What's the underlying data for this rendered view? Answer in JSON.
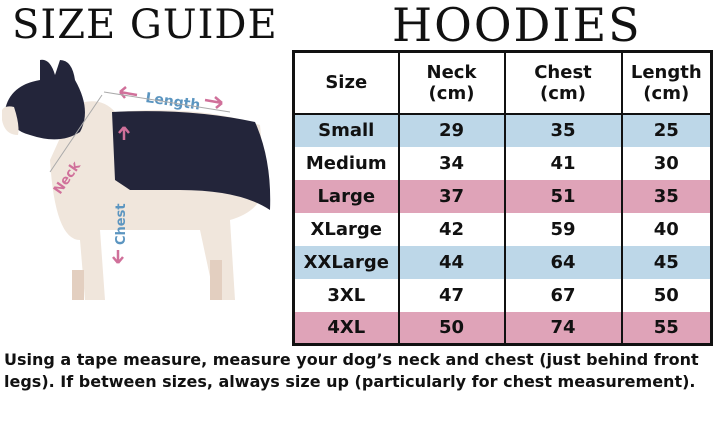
{
  "titles": {
    "left": "SIZE GUIDE",
    "right": "HOODIES"
  },
  "illustration": {
    "labels": {
      "length": "Length",
      "neck": "Neck",
      "chest": "Chest"
    }
  },
  "table": {
    "headers": [
      [
        "Size"
      ],
      [
        "Neck",
        "(cm)"
      ],
      [
        "Chest",
        "(cm)"
      ],
      [
        "Length",
        "(cm)"
      ]
    ],
    "rows": [
      {
        "size": "Small",
        "neck": "29",
        "chest": "35",
        "length": "25",
        "color": "blue"
      },
      {
        "size": "Medium",
        "neck": "34",
        "chest": "41",
        "length": "30",
        "color": "white"
      },
      {
        "size": "Large",
        "neck": "37",
        "chest": "51",
        "length": "35",
        "color": "pink"
      },
      {
        "size": "XLarge",
        "neck": "42",
        "chest": "59",
        "length": "40",
        "color": "white"
      },
      {
        "size": "XXLarge",
        "neck": "44",
        "chest": "64",
        "length": "45",
        "color": "blue"
      },
      {
        "size": "3XL",
        "neck": "47",
        "chest": "67",
        "length": "50",
        "color": "white"
      },
      {
        "size": "4XL",
        "neck": "50",
        "chest": "74",
        "length": "55",
        "color": "pink"
      }
    ]
  },
  "colors": {
    "blue": "#bdd7e8",
    "pink": "#dfa3b8",
    "navy": "#23253a"
  },
  "note": "Using a tape measure, measure your dog’s neck and chest (just behind front legs). If between sizes, always size up (particularly for chest measurement)."
}
